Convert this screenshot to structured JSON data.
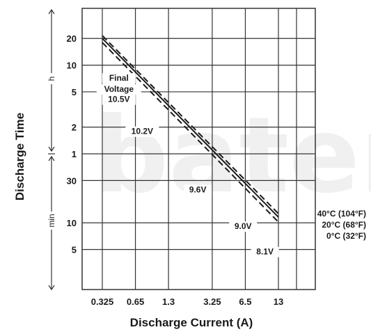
{
  "chart_data": {
    "type": "line",
    "xlabel": "Discharge Current (A)",
    "ylabel": "Discharge Time",
    "x_scale": "log",
    "y_scale": "log",
    "grid": true,
    "x_ticks": [
      "0.325",
      "0.65",
      "1.3",
      "3.25",
      "6.5",
      "13"
    ],
    "x_tick_values": [
      0.325,
      0.65,
      1.3,
      3.25,
      6.5,
      13
    ],
    "y_ticks_hours": [
      "20",
      "10",
      "5",
      "2",
      "1"
    ],
    "y_ticks_minutes": [
      "30",
      "10",
      "5"
    ],
    "y_tick_values_minutes": [
      1200,
      600,
      300,
      120,
      60,
      30,
      10,
      5
    ],
    "y_unit_hours": "h",
    "y_unit_minutes": "min",
    "xlim": [
      0.325,
      13
    ],
    "ylim_minutes": [
      3,
      1500
    ],
    "series": [
      {
        "name": "40°C (104°F)",
        "style": "dashed",
        "x": [
          0.325,
          13
        ],
        "y_minutes": [
          1290,
          12.7
        ]
      },
      {
        "name": "20°C (68°F)",
        "style": "solid",
        "x": [
          0.325,
          13
        ],
        "y_minutes": [
          1200,
          11.6
        ]
      },
      {
        "name": "0°C (32°F)",
        "style": "dashed",
        "x": [
          0.325,
          13
        ],
        "y_minutes": [
          1080,
          10.2
        ]
      }
    ],
    "annotations": [
      {
        "text": "Final",
        "x": 0.46,
        "y_minutes": 400
      },
      {
        "text": "Voltage",
        "x": 0.46,
        "y_minutes": 300
      },
      {
        "text": "10.5V",
        "x": 0.46,
        "y_minutes": 230
      },
      {
        "text": "10.2V",
        "x": 0.75,
        "y_minutes": 100
      },
      {
        "text": "9.6V",
        "x": 2.4,
        "y_minutes": 22
      },
      {
        "text": "9.0V",
        "x": 6.2,
        "y_minutes": 8.5
      },
      {
        "text": "8.1V",
        "x": 9.8,
        "y_minutes": 4.4
      }
    ],
    "watermark": "bater"
  },
  "colors": {
    "line": "#1a1a1a",
    "grid": "#333333",
    "watermark": "#f0f0f0"
  }
}
